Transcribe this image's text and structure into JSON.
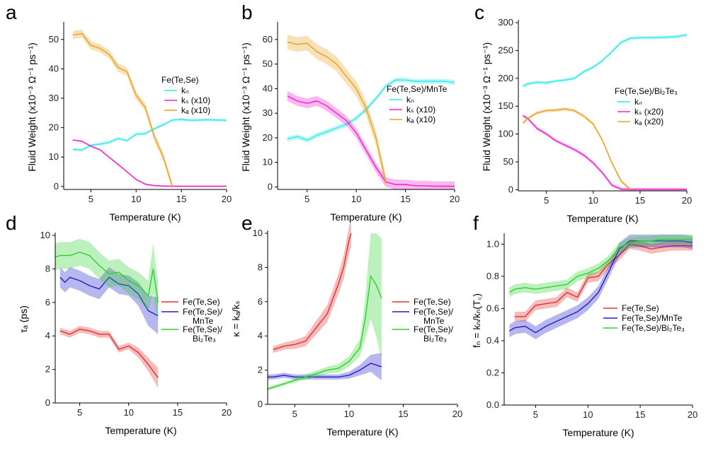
{
  "panel_labels": [
    "a",
    "b",
    "c",
    "d",
    "e",
    "f"
  ],
  "chart_data": [
    {
      "id": "a",
      "type": "line",
      "xlabel": "Temperature (K)",
      "ylabel": "Fluid Weight (x10⁻³ Ω⁻¹ ps⁻¹)",
      "xlim": [
        2,
        20
      ],
      "ylim": [
        -1,
        55
      ],
      "xticks": [
        5,
        10,
        15,
        20
      ],
      "yticks": [
        0,
        10,
        20,
        30,
        40,
        50
      ],
      "legend_title": "Fe(Te,Se)",
      "series": [
        {
          "name": "kn",
          "label": "kₙ",
          "color": "#33e8e8",
          "band": 0.5,
          "x": [
            3,
            4,
            5,
            6,
            7,
            8,
            9,
            10,
            11,
            12,
            13,
            14,
            15,
            16,
            17,
            18,
            19,
            20
          ],
          "y": [
            12.6,
            12.4,
            14,
            14.4,
            15,
            16.3,
            15.6,
            17.8,
            18,
            19.6,
            21,
            22.6,
            22.8,
            22.5,
            22.6,
            22.7,
            22.6,
            22.5
          ]
        },
        {
          "name": "ks",
          "label": "kₛ (x10)",
          "color": "#ee22cc",
          "band": 0.3,
          "x": [
            3,
            4,
            5,
            6,
            7,
            8,
            9,
            10,
            11,
            12,
            13,
            14,
            15,
            16,
            17,
            18,
            19,
            20
          ],
          "y": [
            15.8,
            15.4,
            13.7,
            12.5,
            10,
            7.5,
            5,
            2.4,
            0.8,
            0.3,
            0.15,
            0.1,
            0.1,
            0.1,
            0.1,
            0.1,
            0.1,
            0.1
          ]
        },
        {
          "name": "ka",
          "label": "kₐ (x10)",
          "color": "#e8a020",
          "band": 1.4,
          "x": [
            3,
            4,
            5,
            6,
            7,
            8,
            9,
            10,
            11,
            12,
            13,
            14
          ],
          "y": [
            51.5,
            52,
            48,
            47,
            45,
            40.5,
            39,
            31,
            27,
            17,
            10,
            0
          ]
        }
      ]
    },
    {
      "id": "b",
      "type": "line",
      "xlabel": "Temperature (K)",
      "ylabel": "Fluid Weight (x10⁻³ Ω⁻¹ ps⁻¹)",
      "xlim": [
        2,
        20
      ],
      "ylim": [
        -1,
        66
      ],
      "xticks": [
        5,
        10,
        15,
        20
      ],
      "yticks": [
        0,
        10,
        20,
        30,
        40,
        50,
        60
      ],
      "legend_title": "Fe(Te,Se)/MnTe",
      "series": [
        {
          "name": "kn",
          "label": "kₙ",
          "color": "#33e8e8",
          "band": 1,
          "x": [
            3,
            4,
            5,
            6,
            7,
            8,
            9,
            10,
            11,
            12,
            13,
            14,
            15,
            16,
            17,
            18,
            19,
            20
          ],
          "y": [
            19.5,
            20.5,
            19,
            21,
            22.5,
            24,
            25.5,
            28,
            31.5,
            36,
            41,
            43.5,
            43.5,
            43,
            43,
            43,
            43,
            42.5
          ]
        },
        {
          "name": "ks",
          "label": "kₛ (x10)",
          "color": "#ee22cc",
          "band": 2,
          "x": [
            3,
            4,
            5,
            6,
            7,
            8,
            9,
            10,
            11,
            12,
            13,
            14,
            15,
            16,
            17,
            18,
            19,
            20
          ],
          "y": [
            37,
            35,
            34,
            35,
            33,
            30,
            27,
            22,
            15,
            8,
            2,
            1,
            1,
            0.5,
            0.5,
            0.3,
            0.3,
            0.3
          ]
        },
        {
          "name": "ka",
          "label": "kₐ (x10)",
          "color": "#e8a020",
          "band": 3,
          "x": [
            3,
            4,
            5,
            6,
            7,
            8,
            9,
            10,
            11,
            12,
            13
          ],
          "y": [
            59,
            58,
            58.5,
            55,
            53,
            50,
            45,
            40,
            32,
            20,
            2
          ]
        }
      ]
    },
    {
      "id": "c",
      "type": "line",
      "xlabel": "Temperature (K)",
      "ylabel": "Fluid Weight (x10⁻³ Ω⁻¹ ps⁻¹)",
      "xlim": [
        2,
        20
      ],
      "ylim": [
        -2,
        300
      ],
      "xticks": [
        5,
        10,
        15,
        20
      ],
      "yticks": [
        0,
        50,
        100,
        150,
        200,
        250,
        300
      ],
      "legend_title": "Fe(Te,Se)/Bi₂Te₃",
      "series": [
        {
          "name": "kn",
          "label": "kₙ",
          "color": "#33e8e8",
          "band": 3,
          "x": [
            2.5,
            3,
            4,
            5,
            6,
            7,
            8,
            9,
            10,
            11,
            12,
            13,
            14,
            15,
            16,
            17,
            18,
            19,
            20
          ],
          "y": [
            186,
            190,
            193,
            192,
            195,
            197,
            200,
            212,
            220,
            232,
            248,
            265,
            272,
            273,
            273,
            273,
            274,
            275,
            278
          ]
        },
        {
          "name": "ks",
          "label": "kₛ (x20)",
          "color": "#ee22cc",
          "band": 3,
          "x": [
            2.5,
            3,
            4,
            5,
            6,
            7,
            8,
            9,
            10,
            11,
            12,
            13,
            14,
            15,
            16,
            17,
            18,
            19,
            20
          ],
          "y": [
            133,
            128,
            110,
            100,
            88,
            80,
            72,
            62,
            48,
            30,
            8,
            1,
            0.5,
            0.5,
            0.5,
            0.5,
            0.5,
            0.5,
            0.5
          ]
        },
        {
          "name": "ka",
          "label": "kₐ (x20)",
          "color": "#e8a020",
          "band": 3,
          "x": [
            2.5,
            3,
            4,
            5,
            6,
            7,
            8,
            9,
            10,
            11,
            12,
            13,
            14
          ],
          "y": [
            120,
            128,
            138,
            142,
            143,
            145,
            142,
            132,
            118,
            88,
            48,
            15,
            0
          ]
        }
      ]
    },
    {
      "id": "d",
      "type": "line",
      "xlabel": "Temperature (K)",
      "ylabel": "τₐ (ps)",
      "xlim": [
        2.5,
        20
      ],
      "ylim": [
        0,
        10
      ],
      "xticks": [
        5,
        10,
        15,
        20
      ],
      "yticks": [
        0,
        2,
        4,
        6,
        8,
        10
      ],
      "series": [
        {
          "name": "Fe(Te,Se)",
          "label": "Fe(Te,Se)",
          "color": "#e23030",
          "x": [
            3,
            4,
            5,
            6,
            7,
            8,
            9,
            10,
            11,
            12,
            13
          ],
          "y": [
            4.3,
            4.1,
            4.4,
            4.3,
            4.1,
            4.1,
            3.2,
            3.4,
            3,
            2.3,
            1.5
          ],
          "band": [
            0.2,
            0.2,
            0.2,
            0.2,
            0.2,
            0.2,
            0.2,
            0.2,
            0.3,
            0.4,
            0.6
          ]
        },
        {
          "name": "Fe(Te,Se)/MnTe",
          "label": "Fe(Te,Se)/\nMnTe",
          "color": "#2020c8",
          "x": [
            3,
            3.5,
            4,
            5,
            6,
            7,
            8,
            9,
            10,
            11,
            12,
            13
          ],
          "y": [
            7.5,
            7.2,
            7.5,
            7.3,
            7,
            6.8,
            7.5,
            7.1,
            7,
            6.5,
            5.5,
            5.2
          ],
          "band": [
            0.6,
            0.6,
            0.6,
            0.6,
            0.6,
            0.6,
            0.6,
            0.6,
            0.6,
            0.7,
            0.9,
            1.1
          ]
        },
        {
          "name": "Fe(Te,Se)/Bi2Te3",
          "label": "Fe(Te,Se)/\nBi₂Te₃",
          "color": "#30d030",
          "x": [
            2.5,
            3,
            4,
            5,
            6,
            7,
            8,
            9,
            10,
            11,
            12,
            12.5,
            13
          ],
          "y": [
            8.7,
            8.8,
            8.8,
            9,
            8.8,
            8.2,
            7.7,
            7.8,
            7.3,
            7,
            6.4,
            8,
            6
          ],
          "band": [
            0.8,
            0.8,
            0.8,
            0.8,
            0.8,
            0.8,
            0.8,
            0.8,
            0.8,
            0.8,
            0.9,
            1.5,
            1.2
          ]
        }
      ]
    },
    {
      "id": "e",
      "type": "line",
      "xlabel": "Temperature (K)",
      "ylabel": "κ = kₐ/kₛ",
      "xlim": [
        2.5,
        20
      ],
      "ylim": [
        0,
        10
      ],
      "xticks": [
        5,
        10,
        15,
        20
      ],
      "yticks": [
        0,
        2,
        4,
        6,
        8,
        10
      ],
      "series": [
        {
          "name": "Fe(Te,Se)",
          "label": "Fe(Te,Se)",
          "color": "#e23030",
          "x": [
            3,
            4,
            5,
            6,
            7,
            8,
            9,
            9.5,
            10,
            10.2
          ],
          "y": [
            3.2,
            3.4,
            3.5,
            3.7,
            4.5,
            5.3,
            7,
            8,
            9.6,
            10
          ],
          "band": [
            0.2,
            0.2,
            0.25,
            0.3,
            0.4,
            0.5,
            0.6,
            0.7,
            0.8,
            0.8
          ]
        },
        {
          "name": "Fe(Te,Se)/MnTe",
          "label": "Fe(Te,Se)/\nMnTe",
          "color": "#2020c8",
          "x": [
            2.5,
            3,
            4,
            5,
            6,
            7,
            8,
            9,
            10,
            11,
            12,
            13
          ],
          "y": [
            1.6,
            1.6,
            1.7,
            1.6,
            1.6,
            1.6,
            1.6,
            1.6,
            1.7,
            2,
            2.4,
            2.2
          ],
          "band": [
            0.15,
            0.15,
            0.15,
            0.15,
            0.15,
            0.15,
            0.15,
            0.15,
            0.2,
            0.3,
            0.5,
            0.8
          ]
        },
        {
          "name": "Fe(Te,Se)/Bi2Te3",
          "label": "Fe(Te,Se)/\nBi₂Te₃",
          "color": "#30d030",
          "x": [
            2.5,
            3,
            4,
            5,
            6,
            7,
            8,
            9,
            10,
            11,
            11.5,
            12,
            12.5,
            13
          ],
          "y": [
            0.9,
            1,
            1.2,
            1.4,
            1.6,
            1.8,
            2,
            2.1,
            2.5,
            3.3,
            5,
            7.5,
            7,
            6.2
          ],
          "band": [
            0.1,
            0.1,
            0.1,
            0.12,
            0.15,
            0.18,
            0.2,
            0.25,
            0.3,
            0.5,
            1.2,
            2.5,
            3,
            3.5
          ]
        }
      ]
    },
    {
      "id": "f",
      "type": "line",
      "xlabel": "Temperature (K)",
      "ylabel": "fₙ = kₙ/kₙ(T꜀)",
      "xlim": [
        2,
        20
      ],
      "ylim": [
        0,
        1.05
      ],
      "xticks": [
        5,
        10,
        15,
        20
      ],
      "yticks": [
        0.0,
        0.2,
        0.4,
        0.6,
        0.8,
        1.0
      ],
      "series": [
        {
          "name": "Fe(Te,Se)",
          "label": "Fe(Te,Se)",
          "color": "#e23030",
          "x": [
            3,
            4,
            5,
            6,
            7,
            8,
            9,
            10,
            11,
            12,
            13,
            14,
            15,
            16,
            17,
            18,
            19,
            20
          ],
          "y": [
            0.55,
            0.55,
            0.62,
            0.63,
            0.64,
            0.7,
            0.67,
            0.79,
            0.8,
            0.88,
            0.93,
            1,
            0.99,
            0.97,
            0.98,
            0.99,
            0.99,
            0.99
          ],
          "band": 0.03
        },
        {
          "name": "Fe(Te,Se)/MnTe",
          "label": "Fe(Te,Se)/MnTe",
          "color": "#2020c8",
          "x": [
            2.5,
            3,
            4,
            5,
            6,
            7,
            8,
            9,
            10,
            11,
            12,
            13,
            14,
            15,
            16,
            17,
            18,
            19,
            20
          ],
          "y": [
            0.46,
            0.48,
            0.49,
            0.45,
            0.49,
            0.52,
            0.55,
            0.58,
            0.63,
            0.7,
            0.83,
            0.97,
            1.02,
            1.02,
            1.02,
            1.02,
            1.02,
            1.02,
            1.01
          ],
          "band": 0.04
        },
        {
          "name": "Fe(Te,Se)/Bi2Te3",
          "label": "Fe(Te,Se)/Bi₂Te₃",
          "color": "#30d030",
          "x": [
            2.5,
            3,
            4,
            5,
            6,
            7,
            8,
            9,
            10,
            11,
            12,
            13,
            14,
            15,
            16,
            17,
            18,
            19,
            20
          ],
          "y": [
            0.7,
            0.72,
            0.73,
            0.72,
            0.73,
            0.74,
            0.75,
            0.8,
            0.82,
            0.85,
            0.9,
            0.98,
            1.01,
            1.02,
            1.02,
            1.03,
            1.03,
            1.03,
            1.03
          ],
          "band": 0.03
        }
      ]
    }
  ]
}
